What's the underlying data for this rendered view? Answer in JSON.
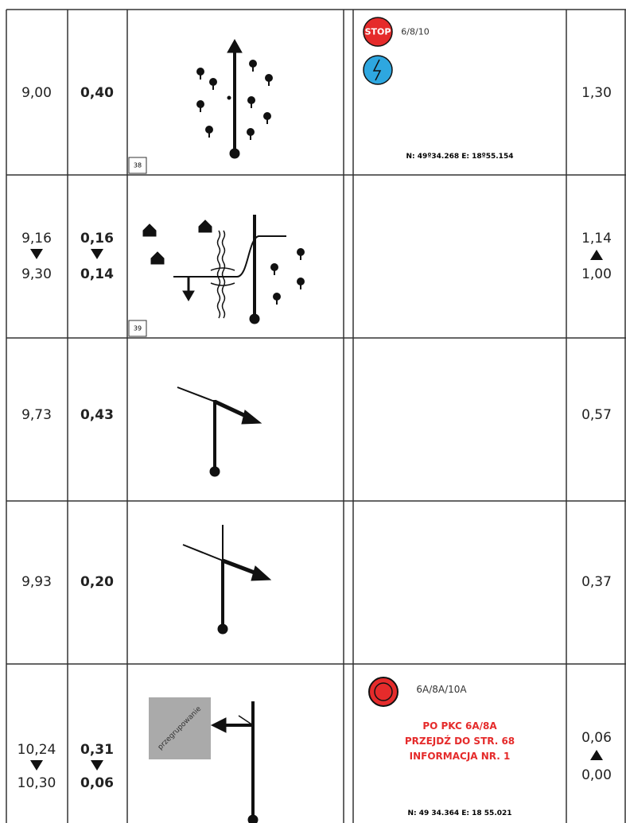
{
  "rows": [
    {
      "total": [
        "9,00"
      ],
      "partial": [
        "0,40"
      ],
      "box": "38",
      "info": {
        "stop": "STOP",
        "label": "6/8/10",
        "coords": "N: 49º34.268 E: 18º55.154"
      },
      "remaining": [
        "1,30"
      ]
    },
    {
      "total": [
        "9,16",
        "9,30"
      ],
      "partial": [
        "0,16",
        "0,14"
      ],
      "box": "39",
      "remaining": [
        "1,14",
        "1,00"
      ]
    },
    {
      "total": [
        "9,73"
      ],
      "partial": [
        "0,43"
      ],
      "remaining": [
        "0,57"
      ]
    },
    {
      "total": [
        "9,93"
      ],
      "partial": [
        "0,20"
      ],
      "remaining": [
        "0,37"
      ]
    },
    {
      "total": [
        "10,24",
        "10,30"
      ],
      "partial": [
        "0,31",
        "0,06"
      ],
      "box_label": "przegrupowanie",
      "info": {
        "label": "6A/8A/10A",
        "notes": [
          "PO PKC 6A/8A",
          "PRZEJDŹ DO STR. 68",
          "INFORMACJA NR. 1"
        ],
        "coords": "N: 49 34.364 E: 18 55.021"
      },
      "remaining": [
        "0,06",
        "0,00"
      ]
    }
  ]
}
